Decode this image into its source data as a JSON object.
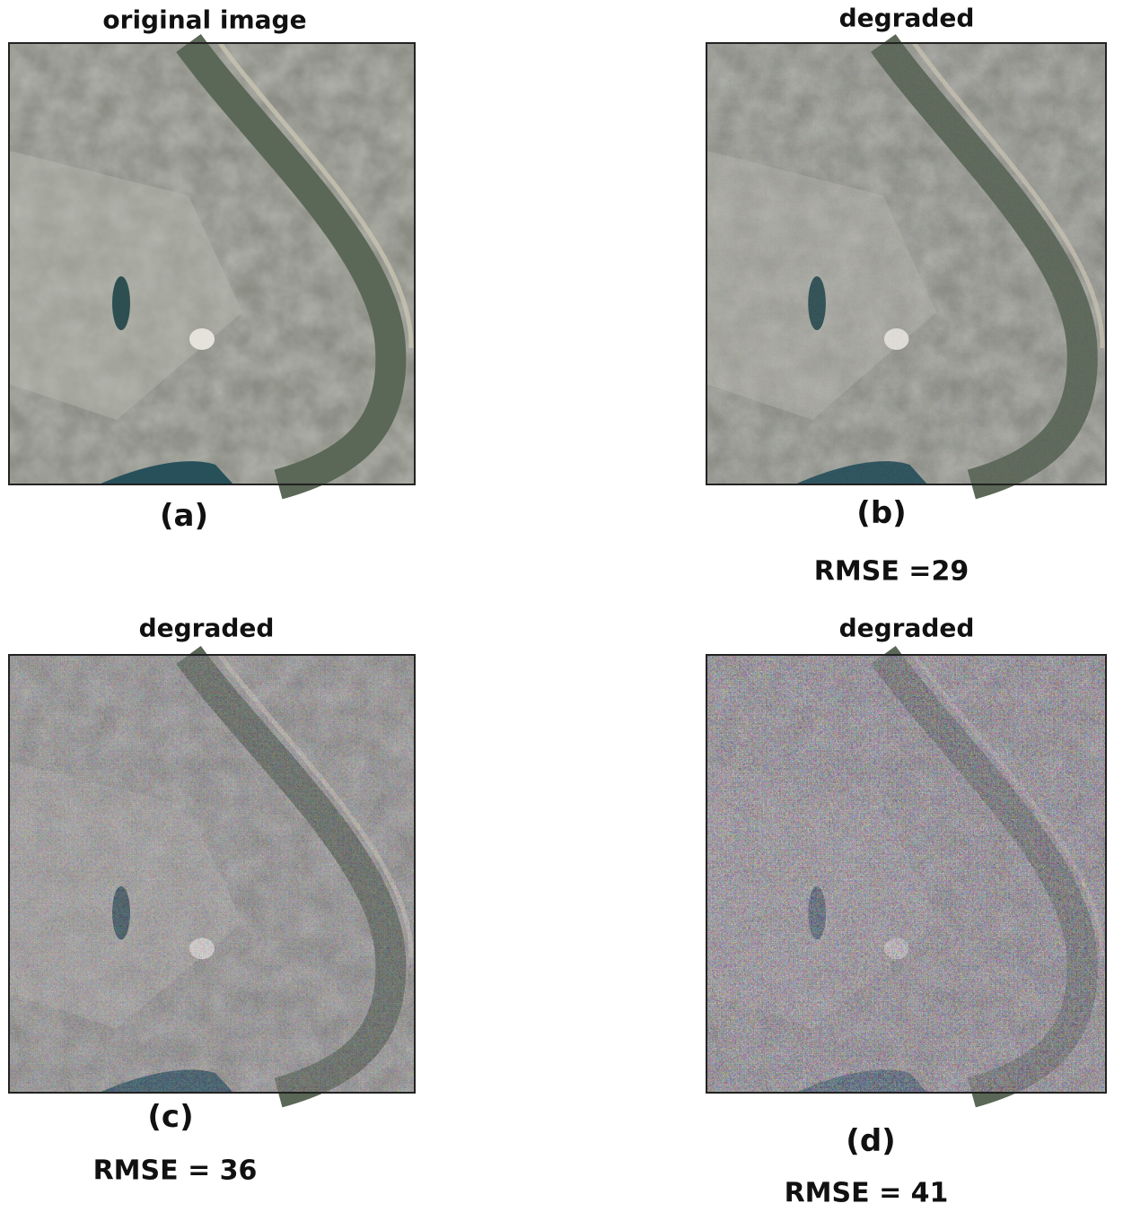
{
  "panels": [
    {
      "title": "original image",
      "label": "(a)"
    },
    {
      "title": "degraded",
      "label": "(b)",
      "rmse": "RMSE =29"
    },
    {
      "title": "degraded",
      "label": "(c)",
      "rmse": "RMSE = 36"
    },
    {
      "title": "degraded",
      "label": "(d)",
      "rmse": "RMSE = 41"
    }
  ]
}
